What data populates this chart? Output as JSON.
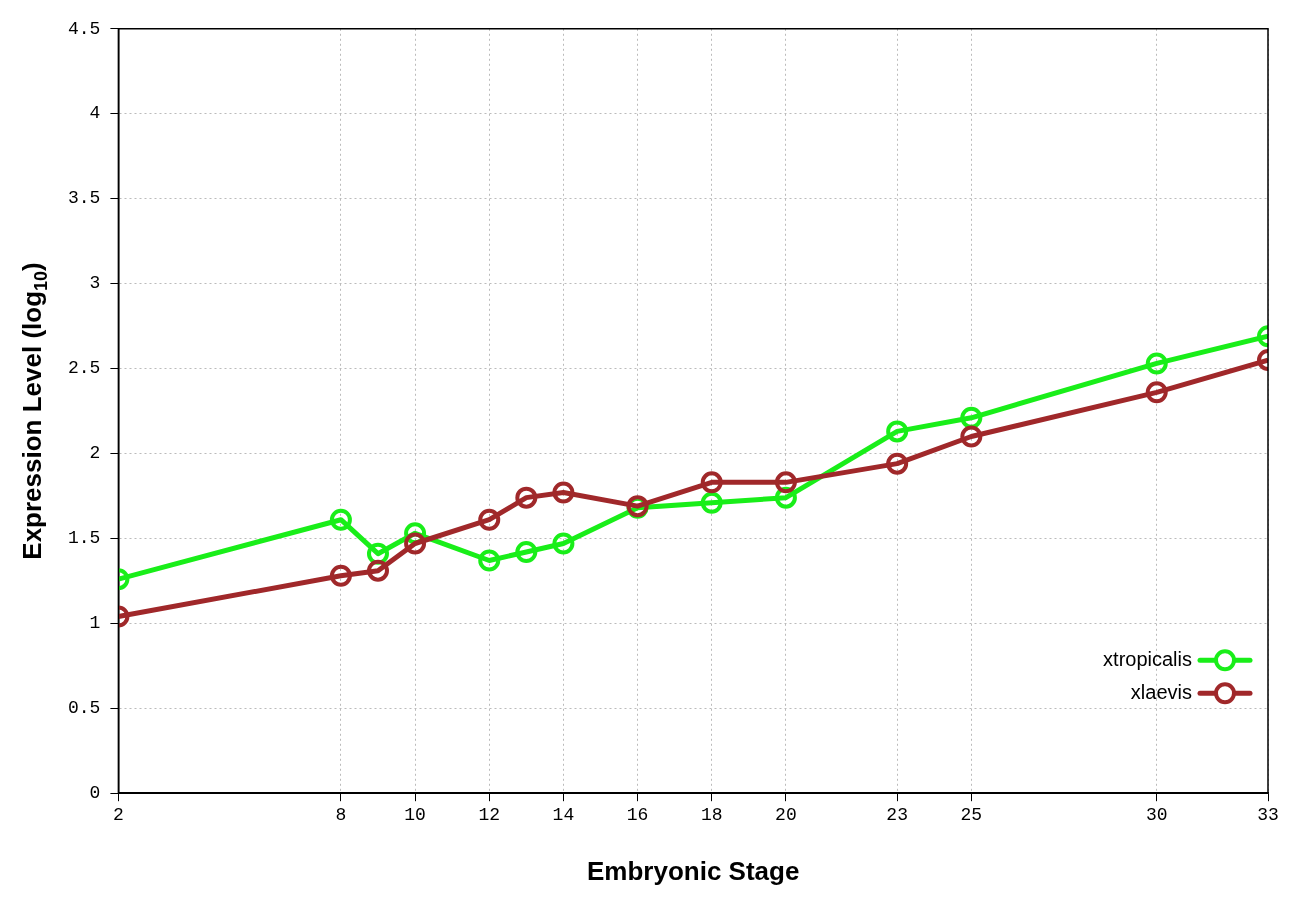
{
  "chart_data": {
    "type": "line",
    "xlabel": "Embryonic Stage",
    "ylabel": "Expression Level (log$_{10}$)",
    "x": [
      2,
      8,
      9,
      10,
      12,
      13,
      14,
      16,
      18,
      20,
      23,
      25,
      30,
      33
    ],
    "series": [
      {
        "name": "xtropicalis",
        "color": "#19ee19",
        "values": [
          1.26,
          1.61,
          1.41,
          1.53,
          1.37,
          1.42,
          1.47,
          1.68,
          1.71,
          1.74,
          2.13,
          2.21,
          2.53,
          2.69
        ]
      },
      {
        "name": "xlaevis",
        "color": "#a0282a",
        "values": [
          1.04,
          1.28,
          1.31,
          1.47,
          1.61,
          1.74,
          1.77,
          1.69,
          1.83,
          1.83,
          1.94,
          2.1,
          2.36,
          2.55
        ]
      }
    ],
    "xlim": [
      2,
      33
    ],
    "xticks": [
      2,
      8,
      10,
      12,
      14,
      16,
      18,
      20,
      23,
      25,
      30,
      33
    ],
    "ylim": [
      0,
      4.5
    ],
    "yticks": [
      0,
      0.5,
      1,
      1.5,
      2,
      2.5,
      3,
      3.5,
      4,
      4.5
    ],
    "grid": true,
    "legend": "bottom right",
    "marker": "circle",
    "line_style": "solid"
  }
}
